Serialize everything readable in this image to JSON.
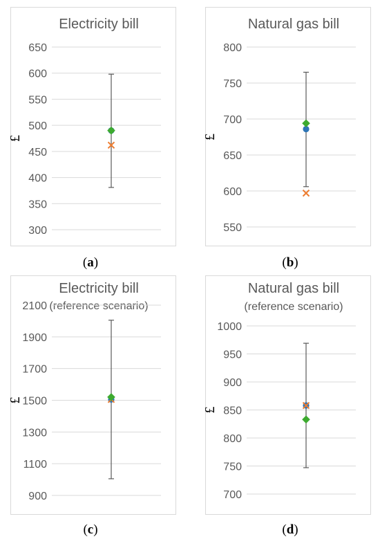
{
  "captions": [
    "a",
    "b",
    "c",
    "d"
  ],
  "chart_data": [
    {
      "type": "scatter",
      "title": "Electricity bill",
      "subtitle": "",
      "ylabel": "£",
      "ylim": [
        300,
        650
      ],
      "yticks": [
        300,
        350,
        400,
        450,
        500,
        550,
        600,
        650
      ],
      "grid": true,
      "error_bar": {
        "low": 381,
        "high": 598
      },
      "series": [
        {
          "marker": "circle",
          "color": "#2E75B6",
          "y": 490
        },
        {
          "marker": "diamond",
          "color": "#3DAA2F",
          "y": 490
        },
        {
          "marker": "cross",
          "color": "#ED7D31",
          "y": 462
        }
      ]
    },
    {
      "type": "scatter",
      "title": "Natural gas bill",
      "subtitle": "",
      "ylabel": "£",
      "ylim": [
        550,
        800
      ],
      "yticks": [
        550,
        600,
        650,
        700,
        750,
        800
      ],
      "grid": true,
      "error_bar": {
        "low": 606,
        "high": 765
      },
      "series": [
        {
          "marker": "circle",
          "color": "#2E75B6",
          "y": 686
        },
        {
          "marker": "diamond",
          "color": "#3DAA2F",
          "y": 694
        },
        {
          "marker": "cross",
          "color": "#ED7D31",
          "y": 597
        }
      ]
    },
    {
      "type": "scatter",
      "title": "Electricity bill",
      "subtitle": "(reference scenario)",
      "ylabel": "£",
      "ylim": [
        900,
        2100
      ],
      "yticks": [
        900,
        1100,
        1300,
        1500,
        1700,
        1900,
        2100
      ],
      "grid": true,
      "error_bar": {
        "low": 1005,
        "high": 2005
      },
      "series": [
        {
          "marker": "circle",
          "color": "#2E75B6",
          "y": 1505
        },
        {
          "marker": "cross",
          "color": "#ED7D31",
          "y": 1505
        },
        {
          "marker": "diamond",
          "color": "#3DAA2F",
          "y": 1520
        }
      ]
    },
    {
      "type": "scatter",
      "title": "Natural gas bill",
      "subtitle": "(reference scenario)",
      "ylabel": "£",
      "ylim": [
        700,
        1000
      ],
      "yticks": [
        700,
        750,
        800,
        850,
        900,
        950,
        1000
      ],
      "grid": true,
      "error_bar": {
        "low": 747,
        "high": 969
      },
      "series": [
        {
          "marker": "circle",
          "color": "#2E75B6",
          "y": 858
        },
        {
          "marker": "cross",
          "color": "#ED7D31",
          "y": 858
        },
        {
          "marker": "diamond",
          "color": "#3DAA2F",
          "y": 833
        }
      ]
    }
  ]
}
